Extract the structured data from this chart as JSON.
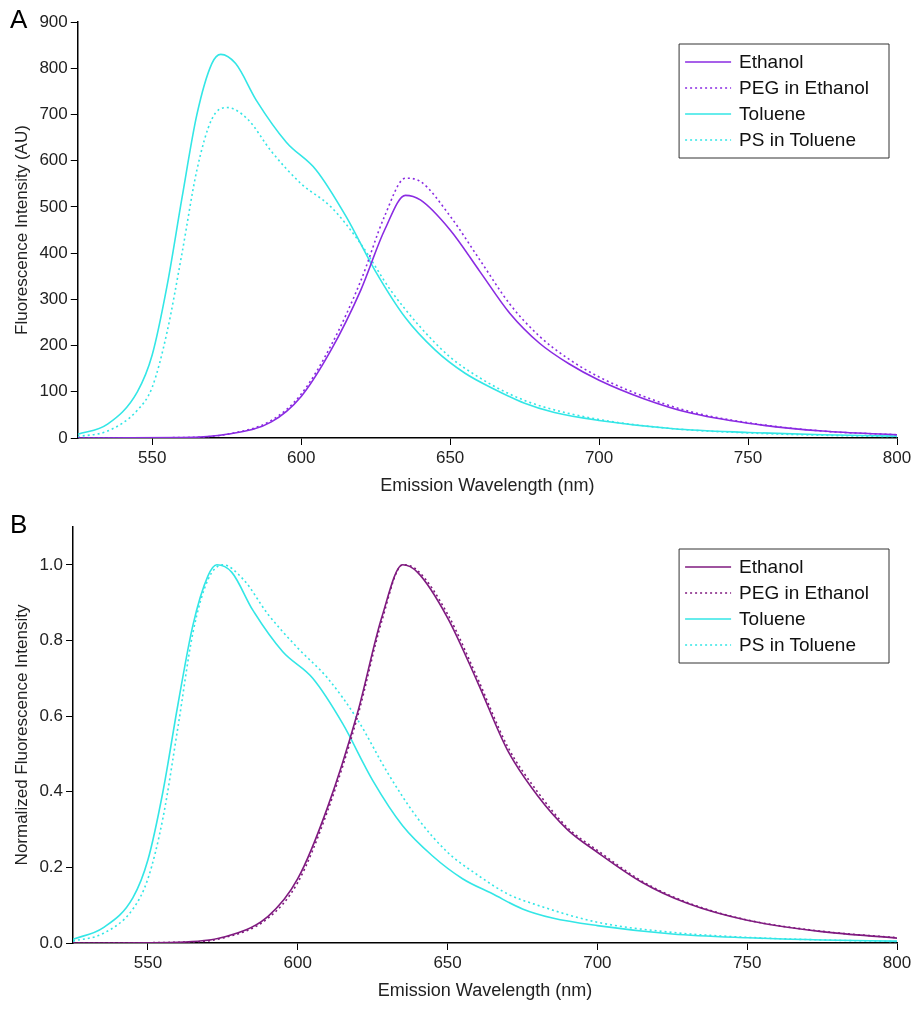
{
  "chart_data": [
    {
      "type": "line",
      "title": "A",
      "xlabel": "Emission Wavelength (nm)",
      "ylabel": "Fluorescence Intensity (AU)",
      "xlim": [
        525,
        800
      ],
      "xticks": [
        550,
        600,
        650,
        700,
        750,
        800
      ],
      "ylim": [
        0,
        900
      ],
      "yticks": [
        0,
        100,
        200,
        300,
        400,
        500,
        600,
        700,
        800,
        900
      ],
      "grid": false,
      "legend": "top right",
      "marker": "none",
      "series": [
        {
          "name": "Ethanol",
          "color": "#8a2be2",
          "line_style": "solid",
          "x": [
            525,
            560,
            575,
            590,
            600,
            610,
            620,
            628,
            635,
            640,
            650,
            660,
            670,
            680,
            690,
            700,
            715,
            730,
            750,
            775,
            800
          ],
          "values": [
            0,
            1,
            8,
            35,
            90,
            190,
            320,
            450,
            525,
            515,
            450,
            360,
            270,
            205,
            160,
            125,
            85,
            55,
            32,
            15,
            7
          ]
        },
        {
          "name": "PEG in Ethanol",
          "color": "#8a2be2",
          "line_style": "dotted",
          "x": [
            525,
            560,
            575,
            590,
            600,
            610,
            620,
            628,
            635,
            640,
            650,
            660,
            670,
            680,
            690,
            700,
            715,
            730,
            750,
            775,
            800
          ],
          "values": [
            0,
            1,
            8,
            38,
            95,
            200,
            340,
            480,
            562,
            555,
            480,
            385,
            290,
            220,
            170,
            132,
            90,
            58,
            33,
            15,
            7
          ]
        },
        {
          "name": "Toluene",
          "color": "#33e6e6",
          "line_style": "solid",
          "x": [
            525,
            535,
            545,
            550,
            555,
            560,
            565,
            570,
            573,
            578,
            585,
            595,
            605,
            615,
            625,
            635,
            645,
            655,
            665,
            675,
            685,
            700,
            725,
            750,
            775,
            800
          ],
          "values": [
            8,
            30,
            100,
            180,
            330,
            520,
            700,
            810,
            830,
            810,
            730,
            640,
            580,
            480,
            360,
            260,
            190,
            140,
            105,
            75,
            55,
            38,
            20,
            12,
            7,
            4
          ]
        },
        {
          "name": "PS in Toluene",
          "color": "#33e6e6",
          "line_style": "dotted",
          "x": [
            525,
            535,
            545,
            550,
            555,
            560,
            565,
            570,
            575,
            582,
            590,
            600,
            610,
            620,
            630,
            640,
            650,
            660,
            670,
            680,
            700,
            725,
            750,
            775,
            800
          ],
          "values": [
            3,
            15,
            60,
            110,
            230,
            400,
            580,
            690,
            715,
            690,
            620,
            550,
            500,
            420,
            320,
            240,
            175,
            130,
            95,
            70,
            40,
            20,
            11,
            6,
            3
          ]
        }
      ]
    },
    {
      "type": "line",
      "title": "B",
      "xlabel": "Emission Wavelength (nm)",
      "ylabel": "Normalized Fluorescence Intensity",
      "xlim": [
        525,
        800
      ],
      "xticks": [
        550,
        600,
        650,
        700,
        750,
        800
      ],
      "ylim": [
        0,
        1.1
      ],
      "yticks": [
        {
          "value": 0,
          "label": "0.0"
        },
        {
          "value": 0.2,
          "label": "0.2"
        },
        {
          "value": 0.4,
          "label": "0.4"
        },
        {
          "value": 0.6,
          "label": "0.6"
        },
        {
          "value": 0.8,
          "label": "0.8"
        },
        {
          "value": 1,
          "label": "1.0"
        }
      ],
      "grid": false,
      "legend": "top right",
      "marker": "none",
      "series": [
        {
          "name": "Ethanol",
          "color": "#7f1a7f",
          "line_style": "solid",
          "x": [
            525,
            560,
            575,
            590,
            600,
            610,
            620,
            628,
            635,
            640,
            650,
            660,
            670,
            680,
            690,
            700,
            715,
            730,
            750,
            775,
            800
          ],
          "values": [
            0,
            0.002,
            0.015,
            0.07,
            0.17,
            0.36,
            0.61,
            0.86,
            1.0,
            0.98,
            0.86,
            0.69,
            0.51,
            0.39,
            0.3,
            0.24,
            0.16,
            0.105,
            0.06,
            0.03,
            0.013
          ]
        },
        {
          "name": "PEG in Ethanol",
          "color": "#7f1a7f",
          "line_style": "dotted",
          "x": [
            525,
            560,
            575,
            590,
            600,
            610,
            620,
            628,
            635,
            640,
            650,
            660,
            670,
            680,
            690,
            700,
            715,
            730,
            750,
            775,
            800
          ],
          "values": [
            0,
            0.002,
            0.013,
            0.065,
            0.16,
            0.35,
            0.6,
            0.85,
            1.0,
            0.985,
            0.87,
            0.7,
            0.52,
            0.4,
            0.305,
            0.245,
            0.163,
            0.107,
            0.061,
            0.031,
            0.014
          ]
        },
        {
          "name": "Toluene",
          "color": "#33e6e6",
          "line_style": "solid",
          "x": [
            525,
            535,
            545,
            550,
            555,
            560,
            565,
            570,
            573,
            578,
            585,
            595,
            605,
            615,
            625,
            635,
            645,
            655,
            665,
            675,
            685,
            700,
            725,
            750,
            775,
            800
          ],
          "values": [
            0.01,
            0.04,
            0.12,
            0.22,
            0.4,
            0.63,
            0.84,
            0.97,
            1.0,
            0.98,
            0.88,
            0.77,
            0.7,
            0.58,
            0.43,
            0.31,
            0.23,
            0.17,
            0.13,
            0.09,
            0.066,
            0.046,
            0.024,
            0.014,
            0.008,
            0.005
          ]
        },
        {
          "name": "PS in Toluene",
          "color": "#33e6e6",
          "line_style": "dotted",
          "x": [
            525,
            535,
            545,
            550,
            555,
            560,
            565,
            570,
            575,
            582,
            590,
            600,
            610,
            620,
            630,
            640,
            650,
            660,
            670,
            680,
            700,
            725,
            750,
            775,
            800
          ],
          "values": [
            0.005,
            0.025,
            0.09,
            0.17,
            0.33,
            0.57,
            0.82,
            0.96,
            1.0,
            0.96,
            0.87,
            0.78,
            0.7,
            0.59,
            0.45,
            0.33,
            0.24,
            0.18,
            0.13,
            0.1,
            0.055,
            0.028,
            0.015,
            0.008,
            0.004
          ]
        }
      ]
    }
  ]
}
